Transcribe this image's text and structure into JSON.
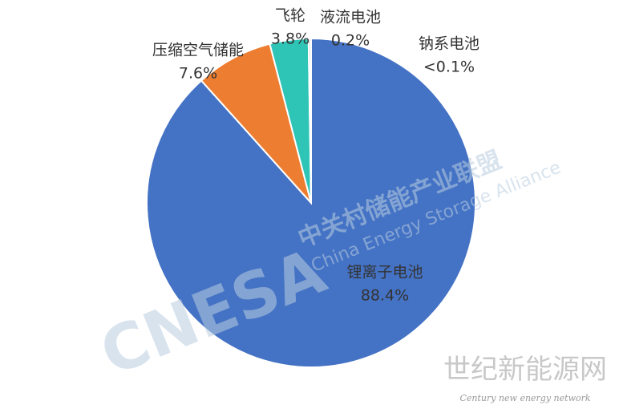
{
  "chart_data": {
    "type": "pie",
    "categories": [
      "锂离子电池",
      "压缩空气储能",
      "飞轮",
      "液流电池",
      "钠系电池"
    ],
    "values": [
      88.4,
      7.6,
      3.8,
      0.2,
      0.05
    ],
    "value_labels": [
      "88.4%",
      "7.6%",
      "3.8%",
      "0.2%",
      "<0.1%"
    ],
    "colors": [
      "#4472c4",
      "#ed7d31",
      "#2ec4b6",
      "#a5a5a5",
      "#ffc000"
    ]
  },
  "watermarks": {
    "logo": "CNESA",
    "org_cn": "中关村储能产业联盟",
    "org_en": "China Energy Storage Alliance",
    "site_cn": "世纪新能源网",
    "site_en": "Century new energy network"
  }
}
